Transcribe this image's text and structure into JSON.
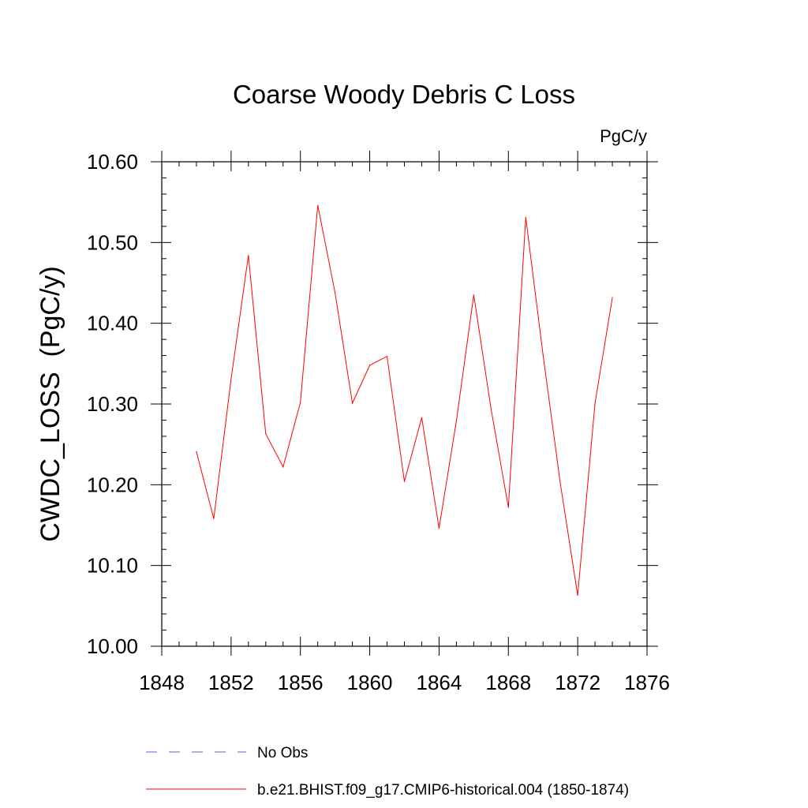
{
  "chart_data": {
    "type": "line",
    "title": "Coarse Woody Debris C Loss",
    "units_label": "PgC/y",
    "ylabel": "CWDC_LOSS  (PgC/y)",
    "xlabel": "",
    "xlim": [
      1848,
      1876
    ],
    "ylim": [
      10.0,
      10.6
    ],
    "x_ticks": [
      1848,
      1852,
      1856,
      1860,
      1864,
      1868,
      1872,
      1876
    ],
    "x_tick_labels": [
      "1848",
      "1852",
      "1856",
      "1860",
      "1864",
      "1868",
      "1872",
      "1876"
    ],
    "y_ticks": [
      10.0,
      10.1,
      10.2,
      10.3,
      10.4,
      10.5,
      10.6
    ],
    "y_tick_labels": [
      "10.00",
      "10.10",
      "10.20",
      "10.30",
      "10.40",
      "10.50",
      "10.60"
    ],
    "grid": false,
    "legend_position": "bottom",
    "series": [
      {
        "name": "b.e21.BHIST.f09_g17.CMIP6-historical.004 (1850-1874)",
        "color": "#ff0000",
        "style": "solid",
        "x": [
          1850,
          1851,
          1852,
          1853,
          1854,
          1855,
          1856,
          1857,
          1858,
          1859,
          1860,
          1861,
          1862,
          1863,
          1864,
          1865,
          1866,
          1867,
          1868,
          1869,
          1870,
          1871,
          1872,
          1873,
          1874
        ],
        "values": [
          10.241,
          10.158,
          10.331,
          10.484,
          10.263,
          10.222,
          10.302,
          10.546,
          10.438,
          10.301,
          10.348,
          10.359,
          10.204,
          10.283,
          10.146,
          10.279,
          10.435,
          10.294,
          10.172,
          10.531,
          10.361,
          10.201,
          10.063,
          10.301,
          10.432
        ]
      }
    ],
    "legend": [
      {
        "label": "No Obs",
        "color": "#6a5acd",
        "style": "dashed"
      },
      {
        "label": "b.e21.BHIST.f09_g17.CMIP6-historical.004 (1850-1874)",
        "color": "#ff0000",
        "style": "solid"
      }
    ]
  }
}
